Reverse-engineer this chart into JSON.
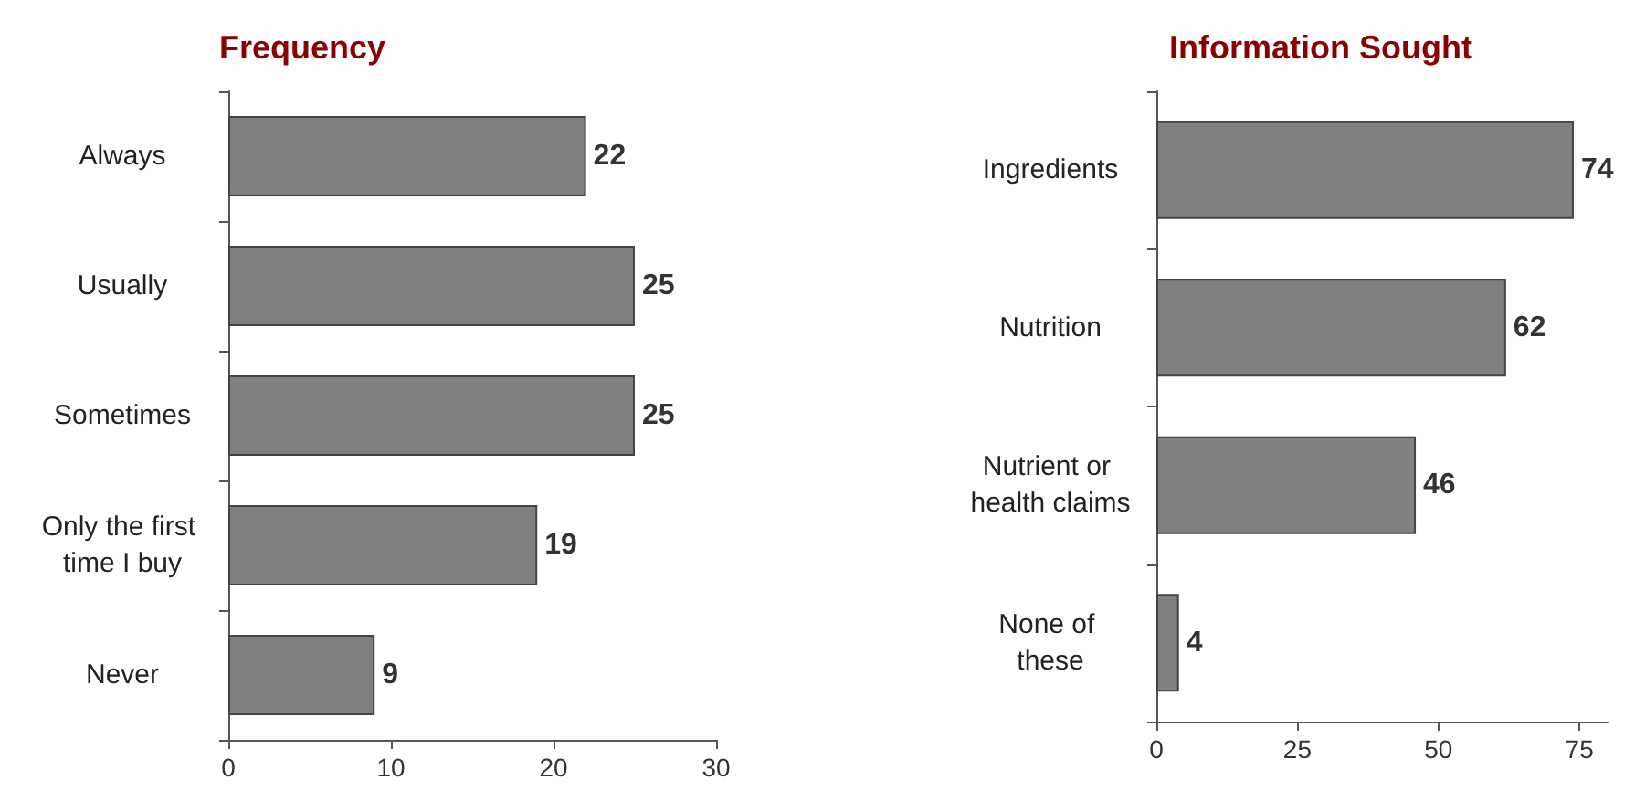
{
  "chart_data": [
    {
      "type": "bar",
      "orientation": "horizontal",
      "title": "Frequency",
      "categories": [
        "Always",
        "Usually",
        "Sometimes",
        "Only the first time I buy",
        "Never"
      ],
      "values": [
        22,
        25,
        25,
        19,
        9
      ],
      "color": "#808080",
      "xlim": [
        0,
        30
      ],
      "xticks": [
        0,
        10,
        20,
        30
      ],
      "data_labels": true
    },
    {
      "type": "bar",
      "orientation": "horizontal",
      "title": "Information Sought",
      "categories": [
        "Ingredients",
        "Nutrition",
        "Nutrient or health claims",
        "None of these"
      ],
      "values": [
        74,
        62,
        46,
        4
      ],
      "color": "#808080",
      "xlim": [
        0,
        80
      ],
      "xticks": [
        0,
        25,
        50,
        75
      ],
      "data_labels": true
    }
  ]
}
